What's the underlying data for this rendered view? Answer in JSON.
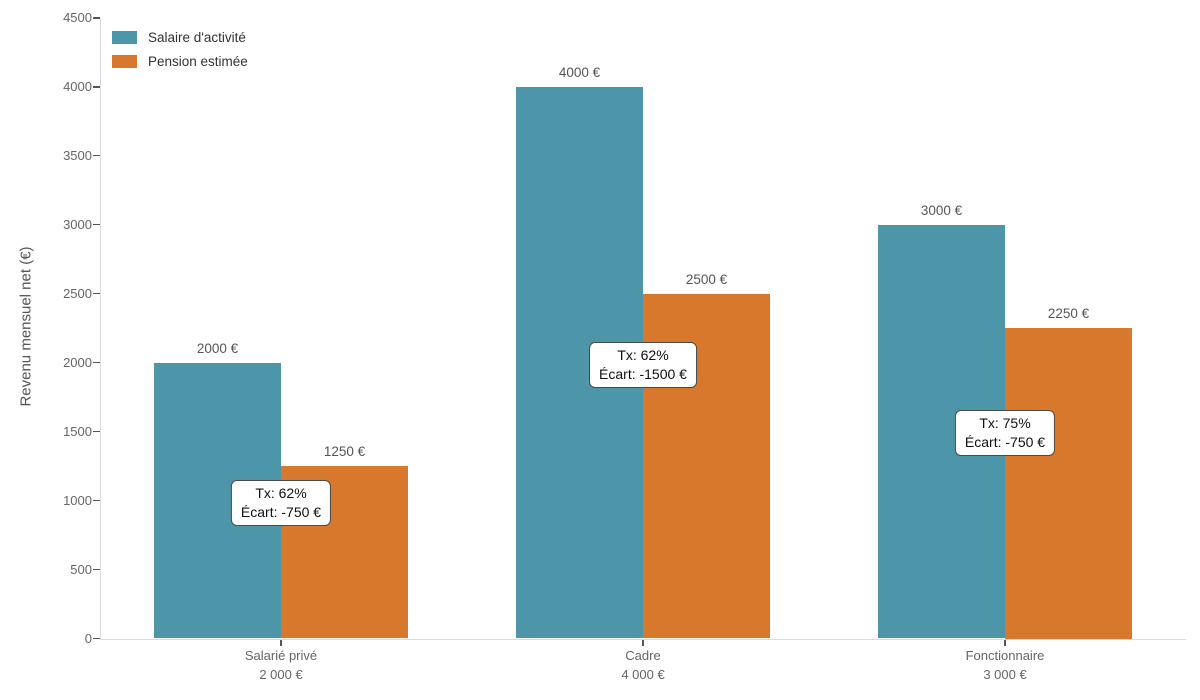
{
  "chart_data": {
    "type": "bar",
    "ylabel": "Revenu mensuel net (€)",
    "ylim": [
      0,
      4500
    ],
    "yticks": [
      0,
      500,
      1000,
      1500,
      2000,
      2500,
      3000,
      3500,
      4000,
      4500
    ],
    "grid": false,
    "legend_position": "upper-left",
    "categories": [
      {
        "label": "Salarié privé",
        "sublabel": "2 000 €"
      },
      {
        "label": "Cadre",
        "sublabel": "4 000 €"
      },
      {
        "label": "Fonctionnaire",
        "sublabel": "3 000 €"
      }
    ],
    "series": [
      {
        "name": "Salaire d'activité",
        "color": "#4d96aa",
        "values": [
          2000,
          4000,
          3000
        ],
        "value_labels": [
          "2000 €",
          "4000 €",
          "3000 €"
        ]
      },
      {
        "name": "Pension estimée",
        "color": "#d7782d",
        "values": [
          1250,
          2500,
          2250
        ],
        "value_labels": [
          "1250 €",
          "2500 €",
          "2250 €"
        ]
      }
    ],
    "annotations": [
      {
        "lines": [
          "Tx: 62%",
          "Écart: -750 €"
        ],
        "y": 985
      },
      {
        "lines": [
          "Tx: 62%",
          "Écart: -1500 €"
        ],
        "y": 1980
      },
      {
        "lines": [
          "Tx: 75%",
          "Écart: -750 €"
        ],
        "y": 1490
      }
    ]
  }
}
